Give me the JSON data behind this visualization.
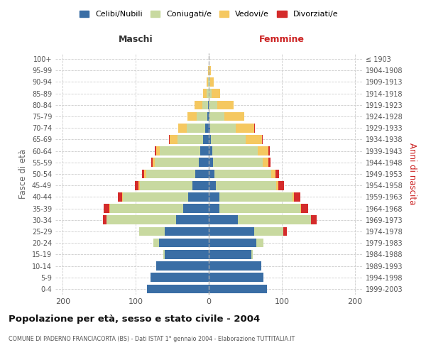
{
  "age_groups": [
    "0-4",
    "5-9",
    "10-14",
    "15-19",
    "20-24",
    "25-29",
    "30-34",
    "35-39",
    "40-44",
    "45-49",
    "50-54",
    "55-59",
    "60-64",
    "65-69",
    "70-74",
    "75-79",
    "80-84",
    "85-89",
    "90-94",
    "95-99",
    "100+"
  ],
  "birth_years": [
    "1999-2003",
    "1994-1998",
    "1989-1993",
    "1984-1988",
    "1979-1983",
    "1974-1978",
    "1969-1973",
    "1964-1968",
    "1959-1963",
    "1954-1958",
    "1949-1953",
    "1944-1948",
    "1939-1943",
    "1934-1938",
    "1929-1933",
    "1924-1928",
    "1919-1923",
    "1914-1918",
    "1909-1913",
    "1904-1908",
    "≤ 1903"
  ],
  "colors": {
    "celibi": "#3A6EA5",
    "coniugati": "#C8D9A0",
    "vedovi": "#F5C860",
    "divorziati": "#D42B2B"
  },
  "males": {
    "celibi": [
      85,
      80,
      72,
      60,
      68,
      60,
      45,
      35,
      28,
      22,
      18,
      14,
      12,
      8,
      5,
      2,
      1,
      0,
      0,
      0,
      0
    ],
    "coniugati": [
      0,
      0,
      0,
      2,
      8,
      35,
      95,
      100,
      90,
      72,
      68,
      60,
      55,
      35,
      25,
      15,
      8,
      3,
      1,
      0,
      0
    ],
    "vedovi": [
      0,
      0,
      0,
      0,
      0,
      0,
      0,
      1,
      1,
      2,
      2,
      3,
      5,
      10,
      12,
      12,
      10,
      5,
      2,
      1,
      0
    ],
    "divorziati": [
      0,
      0,
      0,
      0,
      0,
      0,
      5,
      8,
      5,
      5,
      3,
      2,
      2,
      1,
      0,
      0,
      0,
      0,
      0,
      0,
      0
    ]
  },
  "females": {
    "celibi": [
      80,
      75,
      72,
      58,
      65,
      62,
      40,
      15,
      15,
      10,
      8,
      6,
      5,
      3,
      2,
      1,
      0,
      0,
      0,
      0,
      0
    ],
    "coniugati": [
      0,
      0,
      0,
      2,
      10,
      40,
      100,
      110,
      100,
      82,
      78,
      68,
      62,
      48,
      35,
      20,
      12,
      4,
      2,
      1,
      0
    ],
    "vedovi": [
      0,
      0,
      0,
      0,
      0,
      0,
      0,
      1,
      2,
      3,
      5,
      8,
      15,
      22,
      25,
      28,
      22,
      12,
      5,
      2,
      0
    ],
    "divorziati": [
      0,
      0,
      0,
      0,
      0,
      5,
      8,
      10,
      8,
      8,
      5,
      3,
      2,
      1,
      1,
      0,
      0,
      0,
      0,
      0,
      0
    ]
  },
  "title": "Popolazione per età, sesso e stato civile - 2004",
  "subtitle": "COMUNE DI PADERNO FRANCIACORTA (BS) - Dati ISTAT 1° gennaio 2004 - Elaborazione TUTTITALIA.IT",
  "ylabel_left": "Fasce di età",
  "ylabel_right": "Anni di nascita",
  "xlabel_left": "Maschi",
  "xlabel_right": "Femmine",
  "xlim": 210,
  "background_color": "#FFFFFF",
  "grid_color": "#CCCCCC"
}
